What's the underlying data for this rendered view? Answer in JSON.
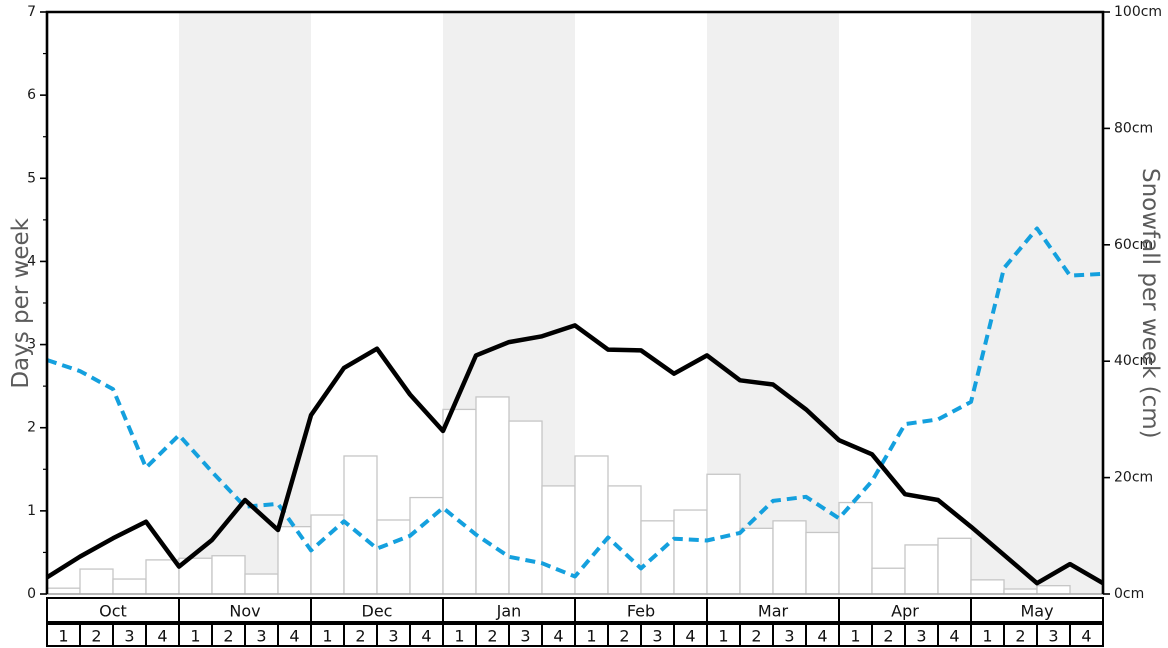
{
  "chart_data": {
    "type": "line+bar",
    "title": "",
    "legend": "none",
    "x": {
      "months": [
        {
          "label": "Oct",
          "shaded": false
        },
        {
          "label": "Nov",
          "shaded": true
        },
        {
          "label": "Dec",
          "shaded": false
        },
        {
          "label": "Jan",
          "shaded": true
        },
        {
          "label": "Feb",
          "shaded": false
        },
        {
          "label": "Mar",
          "shaded": true
        },
        {
          "label": "Apr",
          "shaded": false
        },
        {
          "label": "May",
          "shaded": true
        }
      ],
      "week_labels": [
        "1",
        "2",
        "3",
        "4"
      ]
    },
    "left_axis": {
      "label": "Days per week",
      "min": 0,
      "max": 7,
      "tick_labels": [
        "0",
        "1",
        "2",
        "3",
        "4",
        "5",
        "6",
        "7"
      ],
      "minor_tick_step": 0.5
    },
    "right_axis": {
      "label": "Snowfall per week (cm)",
      "min": 0,
      "max": 100,
      "tick_step": 20,
      "tick_labels": [
        "0cm",
        "20cm",
        "40cm",
        "60cm",
        "80cm",
        "100cm"
      ]
    },
    "shaded_band_color": "#f0f0f0",
    "series": [
      {
        "name": "snowfall-per-week-cm",
        "type": "line",
        "dash": "dashed",
        "color": "#14a0de",
        "width": 4,
        "axis": "right",
        "points": "week-boundaries",
        "values": [
          40.2,
          38.3,
          35.2,
          21.7,
          27.3,
          21.0,
          15.0,
          15.5,
          7.5,
          12.5,
          7.8,
          10.0,
          14.8,
          10.2,
          6.4,
          5.3,
          3.0,
          9.7,
          4.4,
          9.5,
          9.2,
          10.5,
          16.0,
          16.7,
          13.0,
          19.4,
          29.2,
          30.0,
          33.0,
          56.0,
          62.8,
          54.7,
          55.0
        ]
      },
      {
        "name": "snow-days-per-week",
        "type": "line",
        "dash": "solid",
        "color": "#000000",
        "width": 4.5,
        "axis": "left",
        "points": "week-boundaries",
        "values": [
          0.2,
          0.45,
          0.67,
          0.87,
          0.33,
          0.65,
          1.13,
          0.77,
          2.15,
          2.72,
          2.95,
          2.4,
          1.96,
          2.87,
          3.03,
          3.1,
          3.23,
          2.94,
          2.93,
          2.65,
          2.87,
          2.57,
          2.52,
          2.22,
          1.85,
          1.68,
          1.2,
          1.13,
          0.81,
          0.47,
          0.13,
          0.36,
          0.13
        ]
      },
      {
        "name": "weekly-bars",
        "type": "bar",
        "fill": "#ffffff",
        "edge": "#c6c6c6",
        "axis": "left",
        "values": [
          0.07,
          0.3,
          0.18,
          0.41,
          0.43,
          0.46,
          0.24,
          0.81,
          0.95,
          1.66,
          0.89,
          1.16,
          2.22,
          2.37,
          2.08,
          1.3,
          1.66,
          1.3,
          0.88,
          1.01,
          1.44,
          0.79,
          0.88,
          0.74,
          1.1,
          0.31,
          0.59,
          0.67,
          0.17,
          0.06,
          0.1,
          0.0
        ]
      }
    ]
  }
}
